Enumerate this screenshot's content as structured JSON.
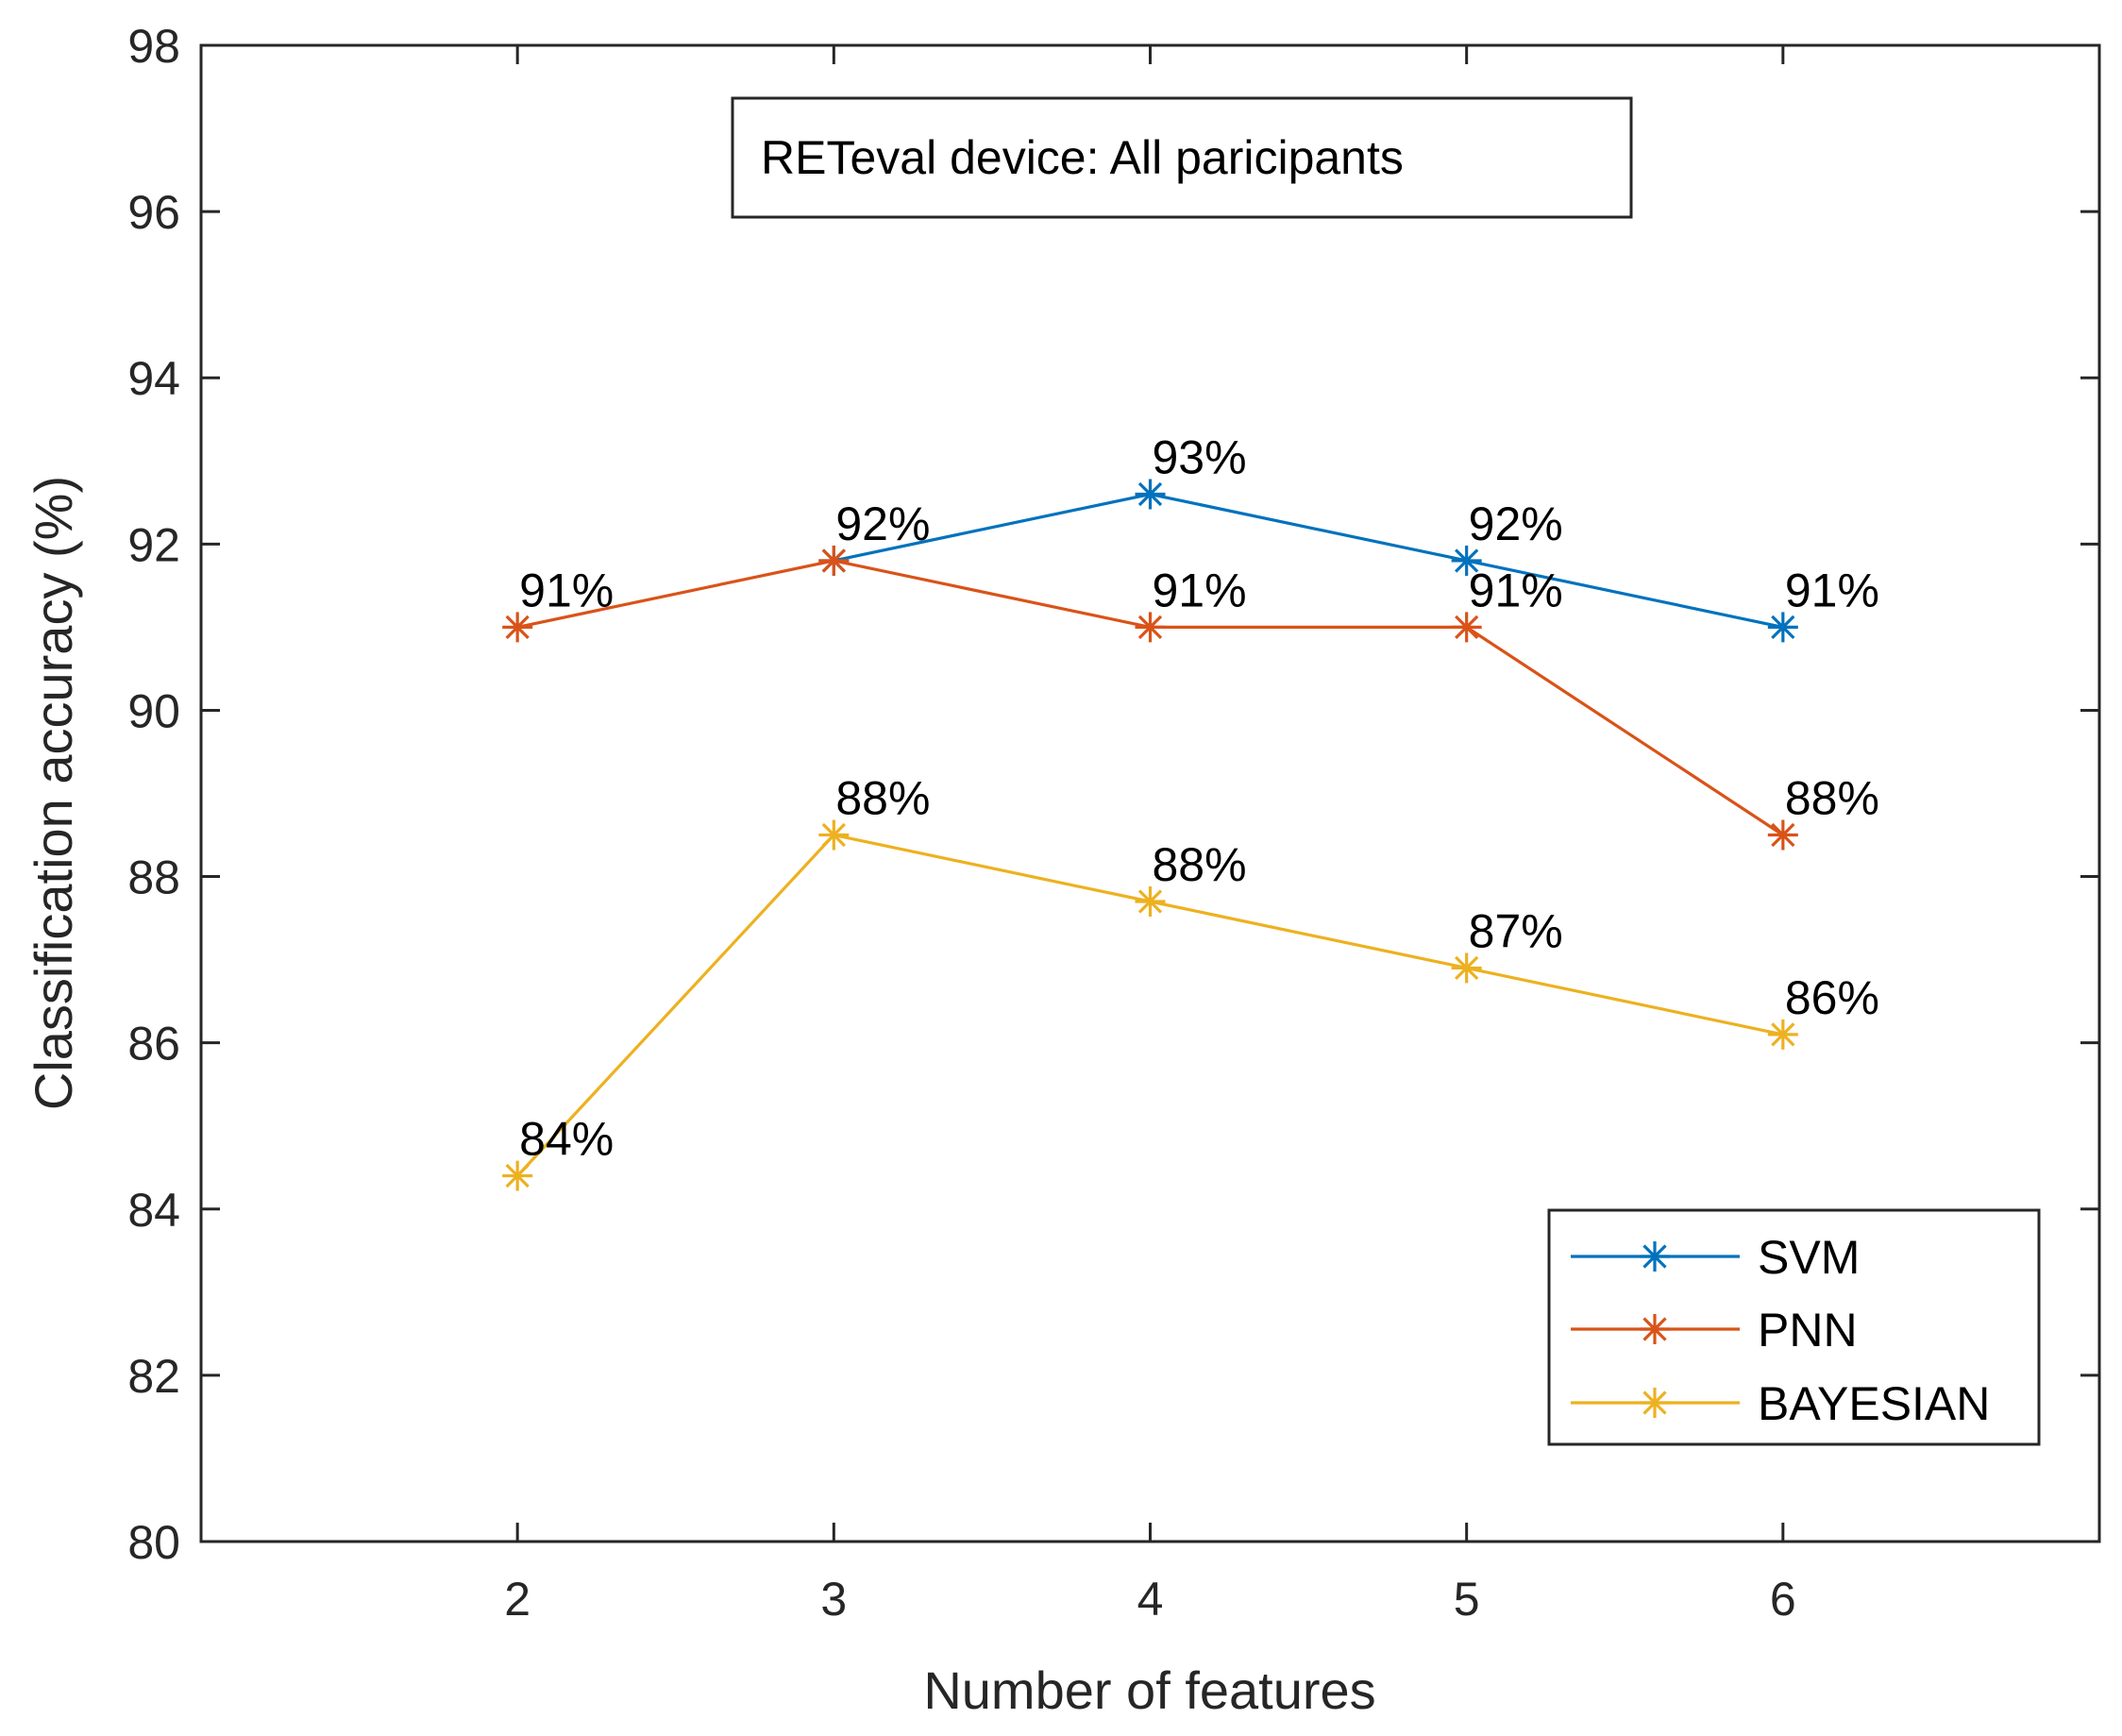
{
  "chart_data": {
    "type": "line",
    "title": "RETeval device: All paricipants",
    "xlabel": "Number of features",
    "ylabel": "Classification accuracy (%)",
    "x": [
      2,
      3,
      4,
      5,
      6
    ],
    "xlim": [
      1,
      7
    ],
    "ylim": [
      80,
      98
    ],
    "xticks": [
      "2",
      "3",
      "4",
      "5",
      "6"
    ],
    "yticks": [
      "80",
      "82",
      "84",
      "86",
      "88",
      "90",
      "92",
      "94",
      "96",
      "98"
    ],
    "grid": false,
    "legend_position": "bottom-right",
    "series": [
      {
        "name": "SVM",
        "color": "#0072BD",
        "x": [
          3,
          4,
          5,
          6
        ],
        "values": [
          91.8,
          92.6,
          91.8,
          91.0
        ],
        "labels": [
          "",
          "93%",
          "92%",
          "91%"
        ]
      },
      {
        "name": "PNN",
        "color": "#D95319",
        "x": [
          2,
          3,
          4,
          5,
          6
        ],
        "values": [
          91.0,
          91.8,
          91.0,
          91.0,
          88.5
        ],
        "labels": [
          "91%",
          "92%",
          "91%",
          "91%",
          "88%"
        ]
      },
      {
        "name": "BAYESIAN",
        "color": "#EDB120",
        "x": [
          2,
          3,
          4,
          5,
          6
        ],
        "values": [
          84.4,
          88.5,
          87.7,
          86.9,
          86.1
        ],
        "labels": [
          "84%",
          "88%",
          "88%",
          "87%",
          "86%"
        ]
      }
    ]
  }
}
